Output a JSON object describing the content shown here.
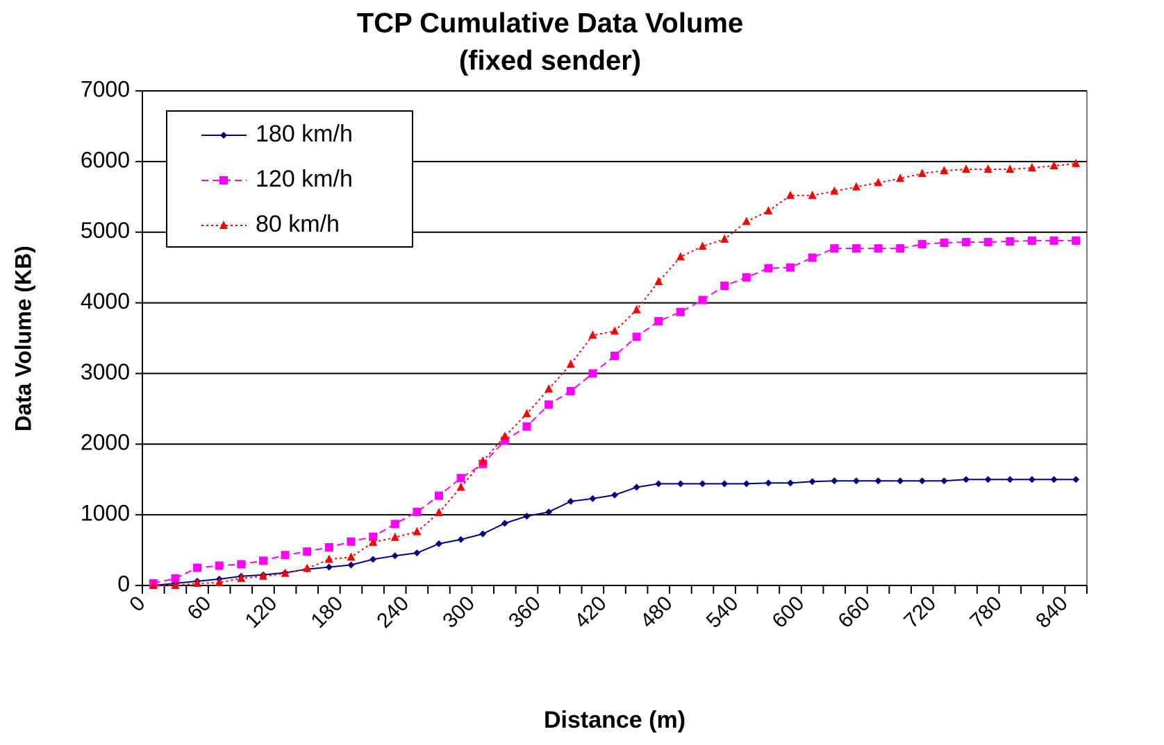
{
  "chart_data": {
    "type": "line",
    "title": "TCP Cumulative Data Volume",
    "subtitle": "(fixed sender)",
    "x_label": "Distance (m)",
    "y_label": "Data Volume (KB)",
    "categories": [
      "0",
      null,
      null,
      "60",
      null,
      null,
      "120",
      null,
      null,
      "180",
      null,
      null,
      "240",
      null,
      null,
      "300",
      null,
      null,
      "360",
      null,
      null,
      "420",
      null,
      null,
      "480",
      null,
      null,
      "540",
      null,
      null,
      "600",
      null,
      null,
      "660",
      null,
      null,
      "720",
      null,
      null,
      "780",
      null,
      null,
      "840"
    ],
    "series": [
      {
        "name": "180 km/h",
        "color": "#000080",
        "marker": "diamond",
        "dash": "solid",
        "values": [
          0,
          30,
          60,
          90,
          130,
          150,
          180,
          230,
          260,
          290,
          370,
          420,
          460,
          590,
          650,
          730,
          880,
          980,
          1040,
          1190,
          1230,
          1280,
          1390,
          1440,
          1440,
          1440,
          1440,
          1440,
          1450,
          1450,
          1470,
          1480,
          1480,
          1480,
          1480,
          1480,
          1480,
          1500,
          1500,
          1500,
          1500,
          1500,
          1500
        ]
      },
      {
        "name": "120 km/h",
        "color": "#ff00ff",
        "marker": "square",
        "dash": "dashed",
        "values": [
          30,
          100,
          250,
          280,
          300,
          350,
          430,
          480,
          540,
          620,
          690,
          870,
          1040,
          1270,
          1520,
          1720,
          2050,
          2250,
          2560,
          2750,
          3000,
          3250,
          3520,
          3740,
          3870,
          4040,
          4240,
          4360,
          4490,
          4500,
          4640,
          4770,
          4770,
          4770,
          4770,
          4830,
          4850,
          4860,
          4860,
          4870,
          4880,
          4880,
          4880
        ]
      },
      {
        "name": "80 km/h",
        "color": "#ff0000",
        "marker": "triangle",
        "dash": "dotted",
        "values": [
          0,
          0,
          30,
          40,
          100,
          130,
          170,
          240,
          370,
          400,
          610,
          680,
          760,
          1030,
          1390,
          1760,
          2110,
          2430,
          2780,
          3130,
          3540,
          3600,
          3900,
          4300,
          4650,
          4800,
          4900,
          5150,
          5300,
          5520,
          5520,
          5580,
          5640,
          5700,
          5760,
          5830,
          5870,
          5890,
          5890,
          5890,
          5910,
          5940,
          5970
        ]
      }
    ],
    "ylim": [
      0,
      7000
    ],
    "yticks": [
      0,
      1000,
      2000,
      3000,
      4000,
      5000,
      6000,
      7000
    ],
    "grid": true,
    "legend": "upper left"
  }
}
